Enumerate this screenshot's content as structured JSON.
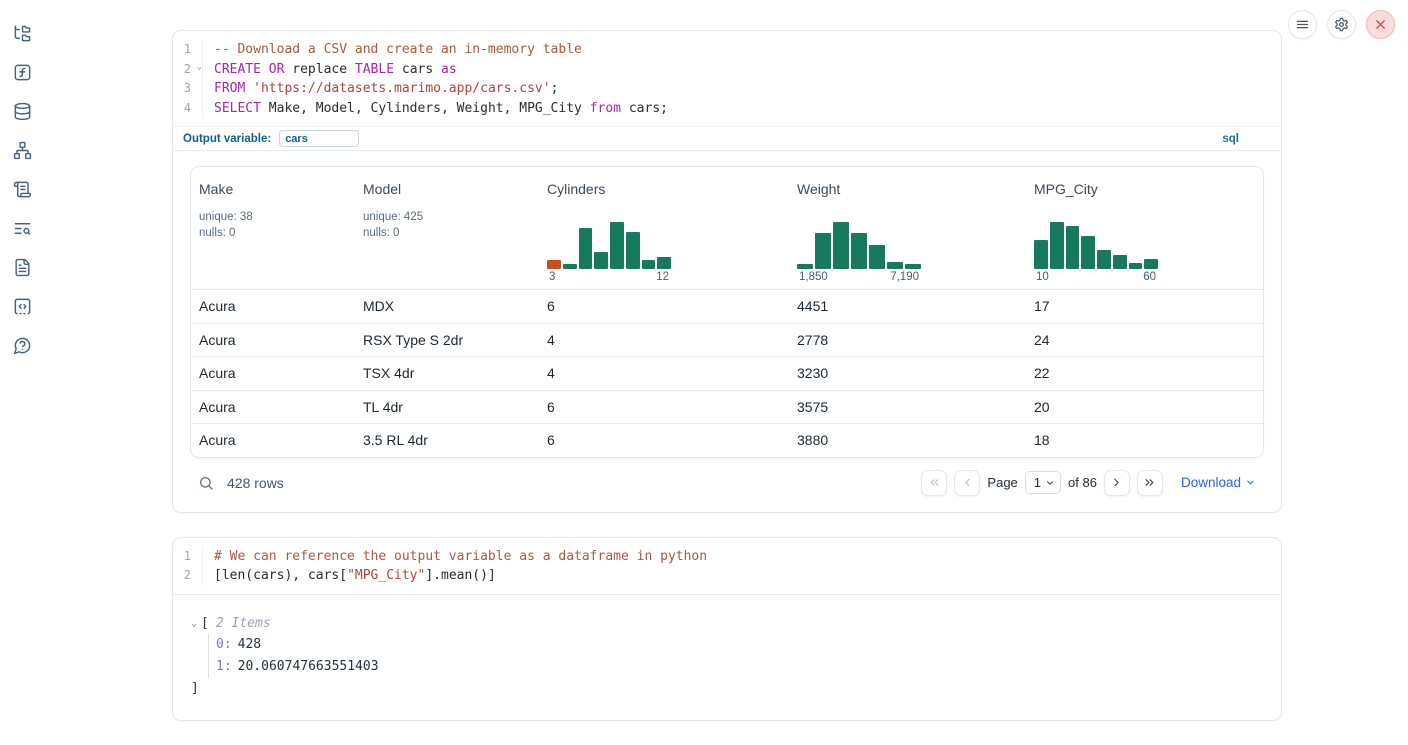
{
  "topbar": {
    "buttons": [
      {
        "name": "notebook-menu-button",
        "icon": "hamburger-icon"
      },
      {
        "name": "settings-button",
        "icon": "gear-icon"
      },
      {
        "name": "shutdown-button",
        "icon": "close-icon"
      }
    ]
  },
  "sidebar": {
    "icons": [
      "file-explorer-icon",
      "function-square-icon",
      "database-icon",
      "dependency-graph-icon",
      "scroll-logs-icon",
      "text-search-icon",
      "documentation-icon",
      "snippets-icon",
      "help-chat-icon"
    ]
  },
  "colors": {
    "histogram_teal": "#177a5f",
    "histogram_orange": "#c4511f",
    "keyword_purple": "#a626a4",
    "string_red": "#b0433c",
    "comment_brown": "#a75a40",
    "output_variable_blue": "#0f618c",
    "sql_badge_blue": "#1a6fa8",
    "download_blue": "#2563eb",
    "close_red": "#d04a4a"
  },
  "cells": [
    {
      "language_badge": "sql",
      "output_variable_label": "Output variable:",
      "output_variable_value": "cars",
      "lines": [
        {
          "no": "1",
          "tokens": [
            {
              "t": "-- Download a CSV and create an in-memory table",
              "c": "comment"
            }
          ]
        },
        {
          "no": "2",
          "fold": true,
          "tokens": [
            {
              "t": "CREATE",
              "c": "kw"
            },
            {
              "t": " ",
              "c": "plain"
            },
            {
              "t": "OR",
              "c": "kw"
            },
            {
              "t": " replace ",
              "c": "plain"
            },
            {
              "t": "TABLE",
              "c": "kw"
            },
            {
              "t": " cars ",
              "c": "plain"
            },
            {
              "t": "as",
              "c": "kw"
            }
          ]
        },
        {
          "no": "3",
          "tokens": [
            {
              "t": "FROM",
              "c": "kw"
            },
            {
              "t": " ",
              "c": "plain"
            },
            {
              "t": "'https://datasets.marimo.app/cars.csv'",
              "c": "str"
            },
            {
              "t": ";",
              "c": "plain"
            }
          ]
        },
        {
          "no": "4",
          "tokens": [
            {
              "t": "SELECT",
              "c": "kw"
            },
            {
              "t": " Make, Model, Cylinders, Weight, MPG_City ",
              "c": "plain"
            },
            {
              "t": "from",
              "c": "kw"
            },
            {
              "t": " cars;",
              "c": "plain"
            }
          ]
        }
      ]
    },
    {
      "language_badge": "python",
      "lines": [
        {
          "no": "1",
          "tokens": [
            {
              "t": "# We can reference the output variable as a dataframe in python",
              "c": "comment"
            }
          ]
        },
        {
          "no": "2",
          "tokens": [
            {
              "t": "[len(cars), cars[",
              "c": "plain"
            },
            {
              "t": "\"MPG_City\"",
              "c": "str"
            },
            {
              "t": "].mean()]",
              "c": "plain"
            }
          ]
        }
      ]
    }
  ],
  "table": {
    "columns": [
      {
        "name": "Make",
        "stats": [
          "unique: 38",
          "nulls: 0"
        ]
      },
      {
        "name": "Model",
        "stats": [
          "unique: 425",
          "nulls: 0"
        ]
      },
      {
        "name": "Cylinders",
        "histogram": {
          "min_label": "3",
          "max_label": "12",
          "bars": [
            {
              "h": 0.2,
              "c": "#c4511f"
            },
            {
              "h": 0.12
            },
            {
              "h": 0.88
            },
            {
              "h": 0.38
            },
            {
              "h": 1.0
            },
            {
              "h": 0.8
            },
            {
              "h": 0.2
            },
            {
              "h": 0.26
            }
          ]
        }
      },
      {
        "name": "Weight",
        "histogram": {
          "min_label": "1,850",
          "max_label": "7,190",
          "bars": [
            {
              "h": 0.12
            },
            {
              "h": 0.78
            },
            {
              "h": 1.0
            },
            {
              "h": 0.78
            },
            {
              "h": 0.52
            },
            {
              "h": 0.16
            },
            {
              "h": 0.12
            }
          ]
        }
      },
      {
        "name": "MPG_City",
        "histogram": {
          "min_label": "10",
          "max_label": "60",
          "bars": [
            {
              "h": 0.62
            },
            {
              "h": 1.0
            },
            {
              "h": 0.93
            },
            {
              "h": 0.7
            },
            {
              "h": 0.42
            },
            {
              "h": 0.3
            },
            {
              "h": 0.13
            },
            {
              "h": 0.22
            }
          ]
        }
      }
    ],
    "rows": [
      [
        "Acura",
        "MDX",
        "6",
        "4451",
        "17"
      ],
      [
        "Acura",
        "RSX Type S 2dr",
        "4",
        "2778",
        "24"
      ],
      [
        "Acura",
        "TSX 4dr",
        "4",
        "3230",
        "22"
      ],
      [
        "Acura",
        "TL 4dr",
        "6",
        "3575",
        "20"
      ],
      [
        "Acura",
        "3.5 RL 4dr",
        "6",
        "3880",
        "18"
      ]
    ],
    "footer": {
      "row_count": "428 rows",
      "page_label": "Page",
      "page_value": "1",
      "of_label": "of 86",
      "download_label": "Download"
    }
  },
  "chart_data": [
    {
      "type": "bar",
      "title": "Cylinders column histogram",
      "x_min_label": "3",
      "x_max_label": "12",
      "values_relative": [
        0.2,
        0.12,
        0.88,
        0.38,
        1.0,
        0.8,
        0.2,
        0.26
      ],
      "bar_color": "#177a5f",
      "first_bar_color": "#c4511f",
      "note": "mini histogram; only axis extent labels shown"
    },
    {
      "type": "bar",
      "title": "Weight column histogram",
      "x_min_label": "1,850",
      "x_max_label": "7,190",
      "values_relative": [
        0.12,
        0.78,
        1.0,
        0.78,
        0.52,
        0.16,
        0.12
      ],
      "bar_color": "#177a5f",
      "note": "mini histogram; only axis extent labels shown"
    },
    {
      "type": "bar",
      "title": "MPG_City column histogram",
      "x_min_label": "10",
      "x_max_label": "60",
      "values_relative": [
        0.62,
        1.0,
        0.93,
        0.7,
        0.42,
        0.3,
        0.13,
        0.22
      ],
      "bar_color": "#177a5f",
      "note": "mini histogram; only axis extent labels shown"
    }
  ],
  "output_tree": {
    "open_bracket": "[",
    "items_label": "2 Items",
    "entries": [
      {
        "key": "0:",
        "value": "428"
      },
      {
        "key": "1:",
        "value": "20.060747663551403"
      }
    ],
    "close_bracket": "]"
  }
}
